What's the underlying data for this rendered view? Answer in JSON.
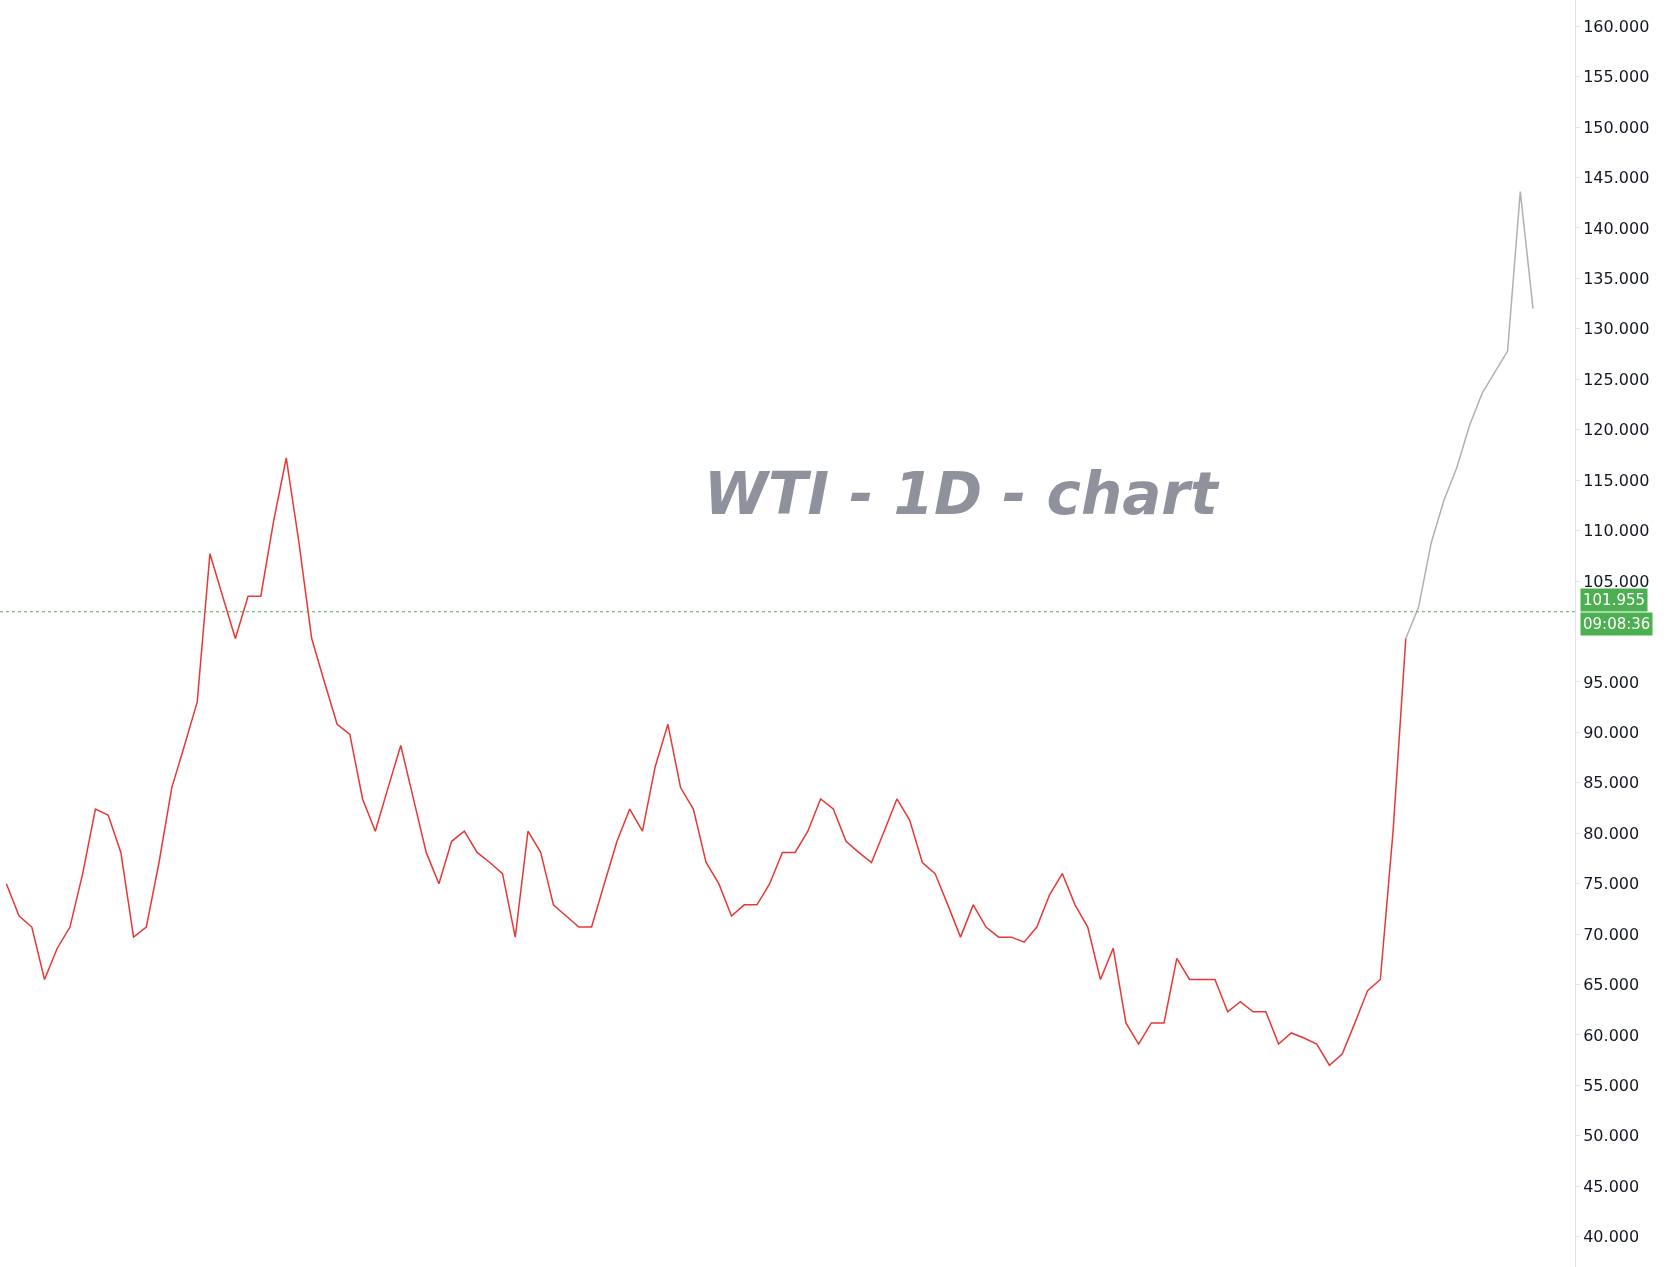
{
  "chart_data": {
    "type": "line",
    "title": "WTI - 1D - chart",
    "categories": [
      null,
      null,
      null,
      null,
      null,
      null,
      null,
      null,
      null,
      null,
      null,
      null,
      null,
      null,
      null,
      null,
      null,
      null,
      null,
      null,
      null,
      null,
      null,
      null,
      null,
      null,
      null,
      null,
      null,
      null,
      null,
      null,
      null,
      null,
      null,
      null,
      null,
      null,
      null,
      null,
      null,
      null,
      null,
      null,
      null,
      null,
      null,
      null,
      null,
      null,
      null,
      null,
      null,
      null,
      null,
      null,
      null,
      null,
      null,
      null,
      null,
      null,
      null,
      null,
      null,
      null,
      null,
      null,
      null,
      null,
      null,
      null,
      null,
      null,
      null,
      null,
      null,
      null,
      null,
      null,
      null,
      null,
      null,
      null,
      null,
      null,
      null,
      null,
      null,
      null,
      null,
      null,
      null,
      null,
      null,
      null,
      null,
      null,
      null,
      null,
      null,
      null,
      null,
      null,
      null,
      null,
      null,
      null,
      null,
      null,
      null,
      null,
      null,
      null,
      null,
      null,
      null,
      null,
      null,
      null,
      null
    ],
    "series": [
      {
        "color": "#e53935",
        "values": [
          75.0,
          71.8,
          70.7,
          65.5,
          68.6,
          70.7,
          76.0,
          82.4,
          81.8,
          78.1,
          69.7,
          70.7,
          77.1,
          84.5,
          88.7,
          93.0,
          107.7,
          103.5,
          99.3,
          103.5,
          103.5,
          110.9,
          117.2,
          108.8,
          99.3,
          95.0,
          90.8,
          89.8,
          83.4,
          80.2,
          84.5,
          88.7,
          83.4,
          78.1,
          75.0,
          79.2,
          80.2,
          78.1,
          77.1,
          76.0,
          69.7,
          80.2,
          78.1,
          72.9,
          71.8,
          70.7,
          70.7,
          75.0,
          79.2,
          82.4,
          80.2,
          86.6,
          90.8,
          84.5,
          82.4,
          77.1,
          75.0,
          71.8,
          72.9,
          72.9,
          75.0,
          78.1,
          78.1,
          80.2,
          83.4,
          82.4,
          79.2,
          78.1,
          77.1,
          80.2,
          83.4,
          81.3,
          77.1,
          76.0,
          72.9,
          69.7,
          72.9,
          70.7,
          69.7,
          69.7,
          69.2,
          70.7,
          73.9,
          76.0,
          72.9,
          70.7,
          65.5,
          68.6,
          61.2,
          59.1,
          61.2,
          61.2,
          67.6,
          65.5,
          65.5,
          65.5,
          62.3,
          63.3,
          62.3,
          62.3,
          59.1,
          60.2,
          59.7,
          59.1,
          57.0,
          58.1,
          61.2,
          64.4,
          65.5,
          80.2,
          99.3,
          null,
          null,
          null,
          null,
          null,
          null,
          null,
          null,
          null,
          null
        ]
      },
      {
        "color": "#b0b0b0",
        "values": [
          null,
          null,
          null,
          null,
          null,
          null,
          null,
          null,
          null,
          null,
          null,
          null,
          null,
          null,
          null,
          null,
          null,
          null,
          null,
          null,
          null,
          null,
          null,
          null,
          null,
          null,
          null,
          null,
          null,
          null,
          null,
          null,
          null,
          null,
          null,
          null,
          null,
          null,
          null,
          null,
          null,
          null,
          null,
          null,
          null,
          null,
          null,
          null,
          null,
          null,
          null,
          null,
          null,
          null,
          null,
          null,
          null,
          null,
          null,
          null,
          null,
          null,
          null,
          null,
          null,
          null,
          null,
          null,
          null,
          null,
          null,
          null,
          null,
          null,
          null,
          null,
          null,
          null,
          null,
          null,
          null,
          null,
          null,
          null,
          null,
          null,
          null,
          null,
          null,
          null,
          null,
          null,
          null,
          null,
          null,
          null,
          null,
          null,
          null,
          null,
          null,
          null,
          null,
          null,
          null,
          null,
          null,
          null,
          null,
          null,
          99.3,
          102.4,
          108.8,
          113.0,
          116.2,
          120.4,
          123.6,
          125.7,
          127.8,
          143.6,
          132.0
        ]
      }
    ],
    "ylim": [
      37,
      162.6
    ],
    "yticks": [
      {
        "value": 40,
        "label": "40.000"
      },
      {
        "value": 45,
        "label": "45.000"
      },
      {
        "value": 50,
        "label": "50.000"
      },
      {
        "value": 55,
        "label": "55.000"
      },
      {
        "value": 60,
        "label": "60.000"
      },
      {
        "value": 65,
        "label": "65.000"
      },
      {
        "value": 70,
        "label": "70.000"
      },
      {
        "value": 75,
        "label": "75.000"
      },
      {
        "value": 80,
        "label": "80.000"
      },
      {
        "value": 85,
        "label": "85.000"
      },
      {
        "value": 90,
        "label": "90.000"
      },
      {
        "value": 95,
        "label": "95.000"
      },
      {
        "value": 105,
        "label": "105.000"
      },
      {
        "value": 110,
        "label": "110.000"
      },
      {
        "value": 115,
        "label": "115.000"
      },
      {
        "value": 120,
        "label": "120.000"
      },
      {
        "value": 125,
        "label": "125.000"
      },
      {
        "value": 130,
        "label": "130.000"
      },
      {
        "value": 135,
        "label": "135.000"
      },
      {
        "value": 140,
        "label": "140.000"
      },
      {
        "value": 145,
        "label": "145.000"
      },
      {
        "value": 150,
        "label": "150.000"
      },
      {
        "value": 155,
        "label": "155.000"
      },
      {
        "value": 160,
        "label": "160.000"
      }
    ],
    "ref_lines": [
      {
        "axis": "y",
        "value": 101.955,
        "label": "101.955",
        "color": "#4caf50",
        "line_style": "dotted"
      }
    ],
    "annotations": [
      "09:08:36"
    ],
    "grid": false,
    "tick_labels": "y",
    "marker": "none",
    "line_style": "solid"
  }
}
